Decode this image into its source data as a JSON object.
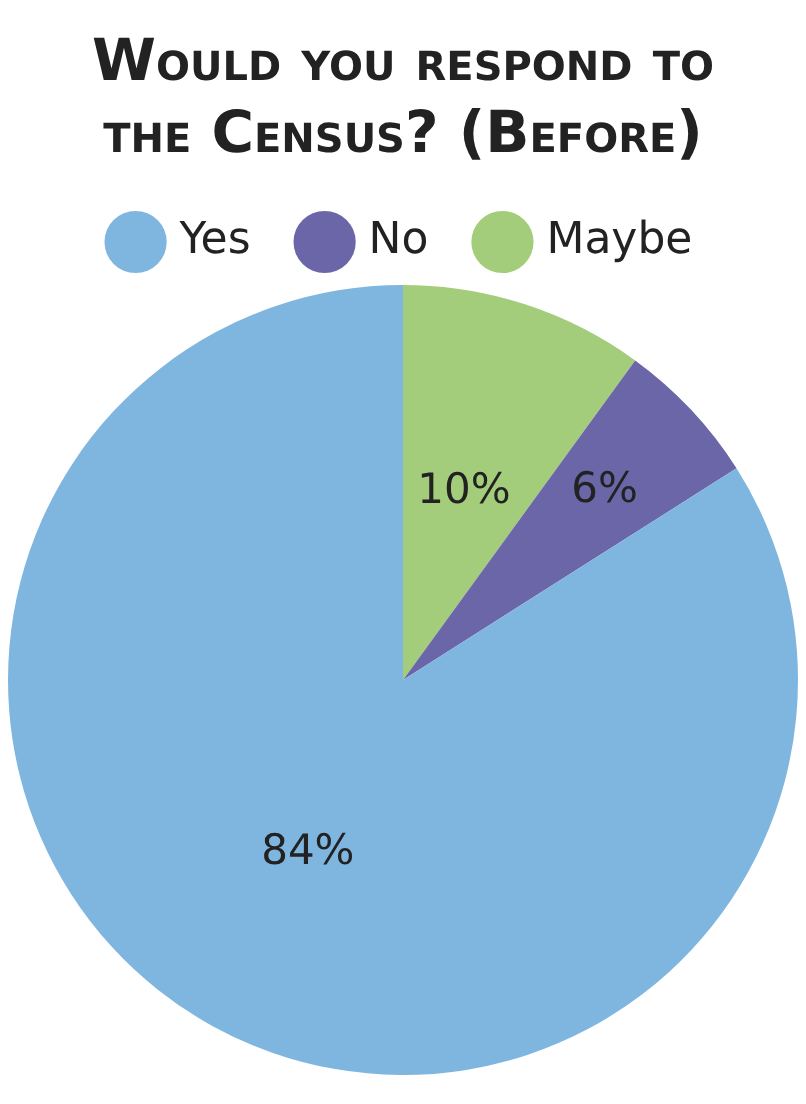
{
  "chart_data": {
    "type": "pie",
    "title": "Would you respond to the Census? (Before)",
    "categories": [
      "Yes",
      "No",
      "Maybe"
    ],
    "values": [
      84,
      6,
      10
    ],
    "colors": [
      "#7fb6e0",
      "#6b66a8",
      "#a4cd7b"
    ],
    "legend": "top",
    "value_labels": [
      "84%",
      "6%",
      "10%"
    ]
  }
}
